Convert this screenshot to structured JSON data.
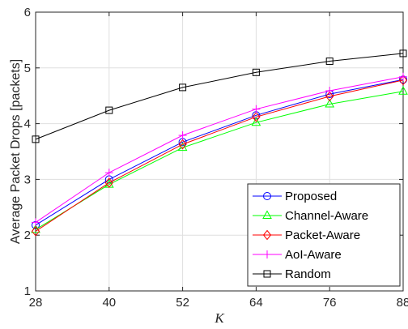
{
  "chart_data": {
    "type": "line",
    "title": "",
    "xlabel": "K",
    "ylabel": "Average Packet Drops [packets]",
    "x": [
      28,
      40,
      52,
      64,
      76,
      88
    ],
    "xticks": [
      "28",
      "40",
      "52",
      "64",
      "76",
      "88"
    ],
    "yticks": [
      "1",
      "2",
      "3",
      "4",
      "5",
      "6"
    ],
    "xlim": [
      28,
      88
    ],
    "ylim": [
      1,
      6
    ],
    "grid": true,
    "legend_position": "bottom-right",
    "series": [
      {
        "name": "Proposed",
        "color": "#0000ff",
        "marker": "circle",
        "values": [
          2.18,
          3.0,
          3.67,
          4.15,
          4.53,
          4.79
        ]
      },
      {
        "name": "Channel-Aware",
        "color": "#00ff00",
        "marker": "triangle",
        "values": [
          2.1,
          2.91,
          3.57,
          4.02,
          4.35,
          4.58
        ]
      },
      {
        "name": "Packet-Aware",
        "color": "#ff0000",
        "marker": "diamond",
        "values": [
          2.07,
          2.94,
          3.63,
          4.12,
          4.49,
          4.78
        ]
      },
      {
        "name": "AoI-Aware",
        "color": "#ff00ff",
        "marker": "plus",
        "values": [
          2.23,
          3.12,
          3.79,
          4.26,
          4.59,
          4.84
        ]
      },
      {
        "name": "Random",
        "color": "#000000",
        "marker": "square",
        "values": [
          3.72,
          4.24,
          4.65,
          4.92,
          5.12,
          5.26
        ]
      }
    ]
  }
}
